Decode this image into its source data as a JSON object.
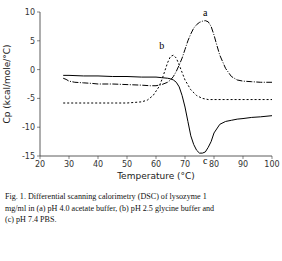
{
  "chart_data": {
    "type": "line",
    "xlabel": "Temperature (°C)",
    "ylabel": "Cp (kcal/mole/°C)",
    "caption": "Fig. 1.  Differential scanning calorimetry (DSC) of lysozyme 1\nmg/ml in (a) pH 4.0 acetate buffer, (b) pH 2.5 glycine buffer and\n(c) pH 7.4 PBS.",
    "xlim": [
      20,
      100
    ],
    "ylim": [
      -15,
      10
    ],
    "xticks": [
      20,
      30,
      40,
      50,
      60,
      70,
      80,
      90,
      100
    ],
    "yticks": [
      -15,
      -10,
      -5,
      0,
      5,
      10
    ],
    "grid": false,
    "series": [
      {
        "color": "#000000",
        "line_style": "dashdot",
        "x": [
          28,
          29,
          30,
          32,
          35,
          38,
          40,
          45,
          50,
          55,
          58,
          60,
          62,
          64,
          65,
          66,
          67,
          68,
          69,
          70,
          71,
          72,
          73,
          74,
          75,
          76,
          77,
          78,
          79,
          80,
          81,
          82,
          84,
          86,
          88,
          90,
          93,
          96,
          100
        ],
        "values": [
          -1.5,
          -1.7,
          -2.0,
          -2.2,
          -2.3,
          -2.4,
          -2.5,
          -2.5,
          -2.6,
          -2.7,
          -2.8,
          -2.8,
          -2.6,
          -2.2,
          -1.8,
          -1.2,
          -0.3,
          0.8,
          2.0,
          3.5,
          5.0,
          6.2,
          7.2,
          7.8,
          8.2,
          8.4,
          8.5,
          8.3,
          7.5,
          6.0,
          4.2,
          2.5,
          0.2,
          -1.2,
          -1.8,
          -2.0,
          -2.1,
          -2.2,
          -2.2
        ]
      },
      {
        "color": "#000000",
        "line_style": "dotted",
        "x": [
          28,
          30,
          35,
          40,
          45,
          50,
          55,
          57,
          59,
          61,
          62,
          63,
          64,
          65,
          66,
          67,
          68,
          69,
          70,
          72,
          74,
          76,
          78,
          80,
          85,
          90,
          95,
          100
        ],
        "values": [
          -5.8,
          -5.8,
          -5.8,
          -5.8,
          -5.8,
          -5.8,
          -5.6,
          -5.3,
          -4.5,
          -3.0,
          -1.8,
          -0.3,
          1.2,
          2.3,
          2.5,
          2.0,
          0.8,
          -0.5,
          -1.8,
          -3.5,
          -4.5,
          -5.0,
          -5.2,
          -5.2,
          -5.2,
          -5.2,
          -5.2,
          -5.2
        ]
      },
      {
        "color": "#000000",
        "line_style": "solid",
        "x": [
          28,
          30,
          35,
          40,
          45,
          50,
          55,
          60,
          62,
          64,
          65,
          66,
          67,
          68,
          69,
          70,
          71,
          72,
          73,
          74,
          75,
          76,
          77,
          78,
          79,
          80,
          82,
          84,
          86,
          88,
          90,
          93,
          96,
          100
        ],
        "values": [
          -1.0,
          -1.0,
          -1.1,
          -1.1,
          -1.2,
          -1.2,
          -1.3,
          -1.3,
          -1.4,
          -1.5,
          -1.6,
          -1.8,
          -2.2,
          -3.0,
          -4.5,
          -6.5,
          -9.0,
          -11.5,
          -13.0,
          -14.0,
          -14.5,
          -14.5,
          -14.3,
          -13.5,
          -12.5,
          -11.0,
          -9.5,
          -9.0,
          -8.8,
          -8.6,
          -8.5,
          -8.3,
          -8.2,
          -8.0
        ]
      }
    ],
    "annotations": [
      {
        "text": "a",
        "x": 77,
        "y": 9.0
      },
      {
        "text": "b",
        "x": 62,
        "y": 3.2
      },
      {
        "text": "c",
        "x": 77,
        "y": -14.8
      }
    ]
  }
}
